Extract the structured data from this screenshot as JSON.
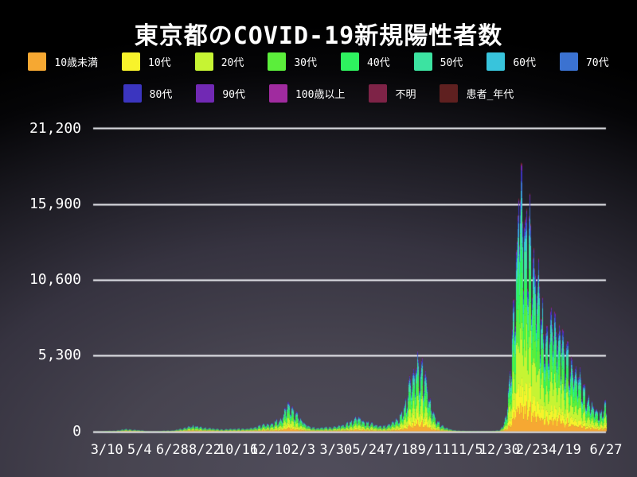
{
  "page": {
    "title": "東京都のCOVID-19新規陽性者数"
  },
  "colors": {
    "background_center": "#4C4957",
    "background_edge": "#000000",
    "grid": "#F4F5F9",
    "text": "#FFFFFF"
  },
  "chart_data": {
    "type": "area",
    "stacked": true,
    "title": "東京都のCOVID-19新規陽性者数",
    "legend_position": "top",
    "grid": true,
    "y_axis": {
      "ticks": [
        0,
        5300,
        10600,
        15900,
        21200
      ],
      "tick_labels": [
        "0",
        "5,300",
        "10,600",
        "15,900",
        "21,200"
      ],
      "ylim": [
        0,
        21562
      ]
    },
    "x_axis": {
      "tick_labels": [
        "3/10",
        "5/4",
        "6/28",
        "8/22",
        "10/16",
        "12/10",
        "2/3",
        "3/30",
        "5/24",
        "7/18",
        "9/11",
        "11/5",
        "12/30",
        "2/23",
        "4/19",
        "6/27"
      ],
      "tick_dates": [
        "2020-03-10",
        "2020-05-04",
        "2020-06-28",
        "2020-08-22",
        "2020-10-16",
        "2020-12-10",
        "2021-02-03",
        "2021-03-30",
        "2021-05-24",
        "2021-07-18",
        "2021-09-11",
        "2021-11-05",
        "2021-12-30",
        "2022-02-23",
        "2022-04-19",
        "2022-06-27"
      ],
      "plot_start_date": "2020-02-16",
      "plot_end_date": "2022-06-27"
    },
    "series": [
      {
        "name": "10歳未満",
        "color": "#F6A832",
        "share": 0.105
      },
      {
        "name": "10代",
        "color": "#F8F32B",
        "share": 0.095
      },
      {
        "name": "20代",
        "color": "#C6F433",
        "share": 0.215
      },
      {
        "name": "30代",
        "color": "#5BEE3B",
        "share": 0.165
      },
      {
        "name": "40代",
        "color": "#2EF25F",
        "share": 0.148
      },
      {
        "name": "50代",
        "color": "#3CE3A1",
        "share": 0.115
      },
      {
        "name": "60代",
        "color": "#38C4DC",
        "share": 0.055
      },
      {
        "name": "70代",
        "color": "#3B72D1",
        "share": 0.042
      },
      {
        "name": "80代",
        "color": "#3B35BF",
        "share": 0.032
      },
      {
        "name": "90代",
        "color": "#7129B4",
        "share": 0.016
      },
      {
        "name": "100歳以上",
        "color": "#A02B9F",
        "share": 0.003
      },
      {
        "name": "不明",
        "color": "#7E2347",
        "share": 0.006
      },
      {
        "name": "患者_年代",
        "color": "#5F2020",
        "share": 0.003
      }
    ],
    "weekly_peak_envelope": [
      {
        "d": "2020-02-16",
        "v": 5
      },
      {
        "d": "2020-02-28",
        "v": 12
      },
      {
        "d": "2020-03-10",
        "v": 40
      },
      {
        "d": "2020-03-25",
        "v": 45
      },
      {
        "d": "2020-04-11",
        "v": 197
      },
      {
        "d": "2020-04-22",
        "v": 134
      },
      {
        "d": "2020-05-04",
        "v": 93
      },
      {
        "d": "2020-05-16",
        "v": 20
      },
      {
        "d": "2020-05-30",
        "v": 15
      },
      {
        "d": "2020-06-14",
        "v": 48
      },
      {
        "d": "2020-06-28",
        "v": 60
      },
      {
        "d": "2020-07-11",
        "v": 206
      },
      {
        "d": "2020-07-23",
        "v": 366
      },
      {
        "d": "2020-08-01",
        "v": 472
      },
      {
        "d": "2020-08-12",
        "v": 390
      },
      {
        "d": "2020-08-22",
        "v": 290
      },
      {
        "d": "2020-09-05",
        "v": 226
      },
      {
        "d": "2020-09-20",
        "v": 162
      },
      {
        "d": "2020-10-03",
        "v": 196
      },
      {
        "d": "2020-10-16",
        "v": 220
      },
      {
        "d": "2020-10-31",
        "v": 215
      },
      {
        "d": "2020-11-14",
        "v": 352
      },
      {
        "d": "2020-11-27",
        "v": 570
      },
      {
        "d": "2020-12-10",
        "v": 602
      },
      {
        "d": "2020-12-17",
        "v": 822
      },
      {
        "d": "2020-12-26",
        "v": 949
      },
      {
        "d": "2020-12-31",
        "v": 1337
      },
      {
        "d": "2021-01-07",
        "v": 2520
      },
      {
        "d": "2021-01-16",
        "v": 1809
      },
      {
        "d": "2021-01-28",
        "v": 1064
      },
      {
        "d": "2021-02-06",
        "v": 639
      },
      {
        "d": "2021-02-15",
        "v": 371
      },
      {
        "d": "2021-02-26",
        "v": 270
      },
      {
        "d": "2021-03-10",
        "v": 340
      },
      {
        "d": "2021-03-20",
        "v": 342
      },
      {
        "d": "2021-03-31",
        "v": 414
      },
      {
        "d": "2021-04-10",
        "v": 537
      },
      {
        "d": "2021-04-22",
        "v": 759
      },
      {
        "d": "2021-05-01",
        "v": 1050
      },
      {
        "d": "2021-05-08",
        "v": 1121
      },
      {
        "d": "2021-05-15",
        "v": 772
      },
      {
        "d": "2021-05-26",
        "v": 743
      },
      {
        "d": "2021-06-05",
        "v": 511
      },
      {
        "d": "2021-06-16",
        "v": 452
      },
      {
        "d": "2021-06-26",
        "v": 534
      },
      {
        "d": "2021-07-07",
        "v": 920
      },
      {
        "d": "2021-07-15",
        "v": 1308
      },
      {
        "d": "2021-07-22",
        "v": 1979
      },
      {
        "d": "2021-07-31",
        "v": 4058
      },
      {
        "d": "2021-08-07",
        "v": 4566
      },
      {
        "d": "2021-08-13",
        "v": 5908
      },
      {
        "d": "2021-08-21",
        "v": 5074
      },
      {
        "d": "2021-08-26",
        "v": 4704
      },
      {
        "d": "2021-09-04",
        "v": 2362
      },
      {
        "d": "2021-09-11",
        "v": 1273
      },
      {
        "d": "2021-09-22",
        "v": 537
      },
      {
        "d": "2021-10-01",
        "v": 280
      },
      {
        "d": "2021-10-13",
        "v": 100
      },
      {
        "d": "2021-10-23",
        "v": 50
      },
      {
        "d": "2021-11-05",
        "v": 30
      },
      {
        "d": "2021-11-18",
        "v": 27
      },
      {
        "d": "2021-12-01",
        "v": 21
      },
      {
        "d": "2021-12-15",
        "v": 27
      },
      {
        "d": "2021-12-30",
        "v": 76
      },
      {
        "d": "2022-01-06",
        "v": 641
      },
      {
        "d": "2022-01-12",
        "v": 2198
      },
      {
        "d": "2022-01-19",
        "v": 7377
      },
      {
        "d": "2022-01-26",
        "v": 14086
      },
      {
        "d": "2022-02-02",
        "v": 21562
      },
      {
        "d": "2022-02-10",
        "v": 18891
      },
      {
        "d": "2022-02-17",
        "v": 17864
      },
      {
        "d": "2022-02-23",
        "v": 14567
      },
      {
        "d": "2022-03-05",
        "v": 11813
      },
      {
        "d": "2022-03-15",
        "v": 8461
      },
      {
        "d": "2022-03-24",
        "v": 8875
      },
      {
        "d": "2022-03-30",
        "v": 9520
      },
      {
        "d": "2022-04-09",
        "v": 8112
      },
      {
        "d": "2022-04-19",
        "v": 6797
      },
      {
        "d": "2022-04-30",
        "v": 5394
      },
      {
        "d": "2022-05-12",
        "v": 4764
      },
      {
        "d": "2022-05-21",
        "v": 3573
      },
      {
        "d": "2022-06-01",
        "v": 2362
      },
      {
        "d": "2022-06-11",
        "v": 1546
      },
      {
        "d": "2022-06-18",
        "v": 1622
      },
      {
        "d": "2022-06-27",
        "v": 2514
      }
    ],
    "notable_peaks": [
      {
        "d": "2021-01-07",
        "v": 2520
      },
      {
        "d": "2021-08-13",
        "v": 5908
      },
      {
        "d": "2022-02-02",
        "v": 21562
      }
    ],
    "weekly_pattern": [
      0.86,
      0.55,
      0.6,
      0.82,
      0.92,
      0.96,
      1.0
    ]
  }
}
